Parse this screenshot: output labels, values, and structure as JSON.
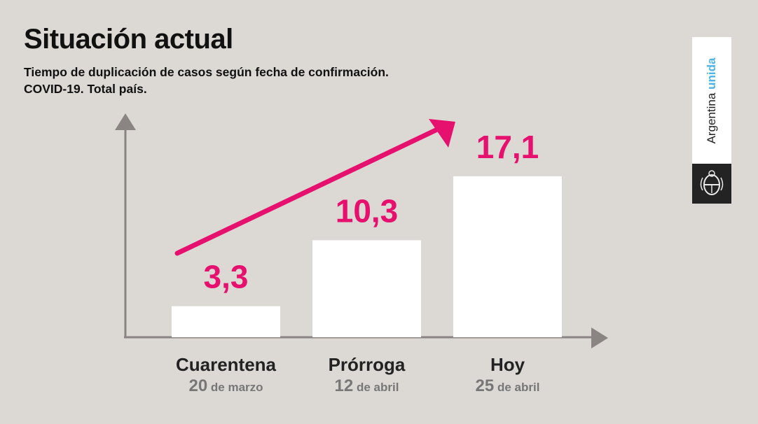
{
  "header": {
    "title": "Situación actual",
    "subtitle_line1": "Tiempo de duplicación de casos según fecha de confirmación.",
    "subtitle_line2": "COVID-19. Total país."
  },
  "logo": {
    "text_regular": "Argentina",
    "text_bold": "unida",
    "emblem_icon": "coat-of-arms-icon"
  },
  "colors": {
    "background": "#dcd8d4",
    "bar": "#ffffff",
    "accent": "#e6106e",
    "axis": "#8a8582",
    "logo_blue": "#4db4e6"
  },
  "chart_data": {
    "type": "bar",
    "categories": [
      "Cuarentena",
      "Prórroga",
      "Hoy"
    ],
    "date_numbers": [
      "20",
      "12",
      "25"
    ],
    "date_texts": [
      "de marzo",
      "de abril",
      "de abril"
    ],
    "values": [
      3.3,
      10.3,
      17.1
    ],
    "value_labels": [
      "3,3",
      "10,3",
      "17,1"
    ],
    "ylim": [
      0,
      22
    ],
    "xlabel": "",
    "ylabel": "",
    "trend_arrow": true,
    "grid": false,
    "legend": "none"
  }
}
